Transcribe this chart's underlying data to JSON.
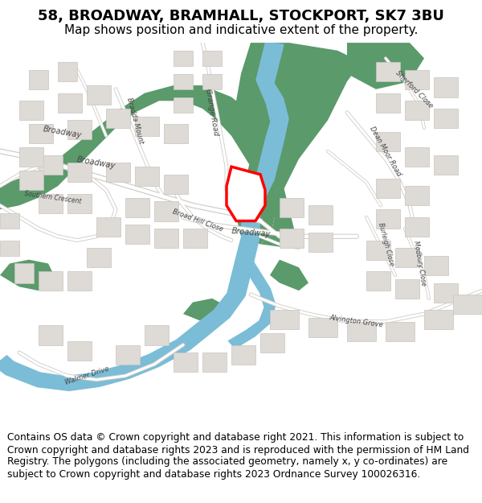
{
  "title": "58, BROADWAY, BRAMHALL, STOCKPORT, SK7 3BU",
  "subtitle": "Map shows position and indicative extent of the property.",
  "footer": "Contains OS data © Crown copyright and database right 2021. This information is subject to Crown copyright and database rights 2023 and is reproduced with the permission of HM Land Registry. The polygons (including the associated geometry, namely x, y co-ordinates) are subject to Crown copyright and database rights 2023 Ordnance Survey 100026316.",
  "bg_color": "#ffffff",
  "map_bg": "#f5f3f0",
  "green_color": "#5b9a6b",
  "blue_color": "#7bbdd6",
  "road_outer": "#d0ceca",
  "road_inner": "#ffffff",
  "building_fill": "#dedad6",
  "building_edge": "#c8c5c0",
  "plot_fill": "#ffffff",
  "plot_edge": "#ff0000",
  "plot_lw": 2.5,
  "title_fs": 13,
  "subtitle_fs": 11,
  "footer_fs": 8.8,
  "label_color": "#444444",
  "label_fs": 6.5
}
